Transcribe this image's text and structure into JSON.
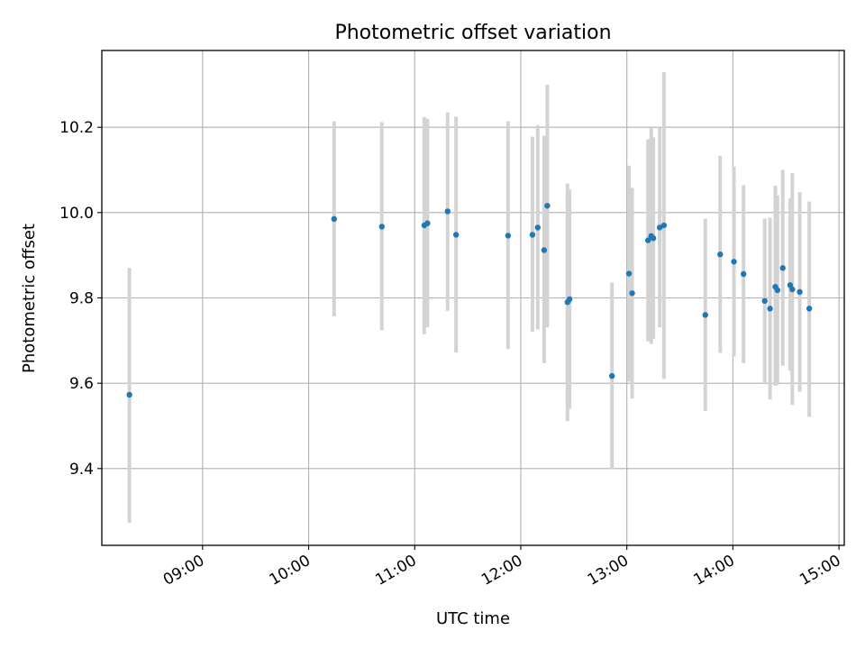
{
  "chart_data": {
    "type": "scatter",
    "title": "Photometric offset variation",
    "xlabel": "UTC time",
    "ylabel": "Photometric offset",
    "x_unit": "UTC hours",
    "xlim": [
      8.05,
      15.05
    ],
    "ylim": [
      9.22,
      10.38
    ],
    "xticks": [
      {
        "value": 9,
        "label": "09:00"
      },
      {
        "value": 10,
        "label": "10:00"
      },
      {
        "value": 11,
        "label": "11:00"
      },
      {
        "value": 12,
        "label": "12:00"
      },
      {
        "value": 13,
        "label": "13:00"
      },
      {
        "value": 14,
        "label": "14:00"
      },
      {
        "value": 15,
        "label": "15:00"
      }
    ],
    "yticks": [
      {
        "value": 9.4,
        "label": "9.4"
      },
      {
        "value": 9.6,
        "label": "9.6"
      },
      {
        "value": 9.8,
        "label": "9.8"
      },
      {
        "value": 10.0,
        "label": "10.0"
      },
      {
        "value": 10.2,
        "label": "10.2"
      }
    ],
    "grid": true,
    "point_color": "#1f77b4",
    "errorbar_color": "#d3d3d3",
    "points": [
      {
        "x": 8.31,
        "y": 9.573,
        "lo": 9.273,
        "hi": 9.87
      },
      {
        "x": 10.24,
        "y": 9.985,
        "lo": 9.757,
        "hi": 10.214
      },
      {
        "x": 10.69,
        "y": 9.967,
        "lo": 9.724,
        "hi": 10.212
      },
      {
        "x": 11.09,
        "y": 9.97,
        "lo": 9.715,
        "hi": 10.224
      },
      {
        "x": 11.12,
        "y": 9.975,
        "lo": 9.731,
        "hi": 10.22
      },
      {
        "x": 11.31,
        "y": 10.003,
        "lo": 9.77,
        "hi": 10.235
      },
      {
        "x": 11.39,
        "y": 9.948,
        "lo": 9.672,
        "hi": 10.225
      },
      {
        "x": 11.88,
        "y": 9.946,
        "lo": 9.68,
        "hi": 10.214
      },
      {
        "x": 12.11,
        "y": 9.948,
        "lo": 9.721,
        "hi": 10.178
      },
      {
        "x": 12.16,
        "y": 9.965,
        "lo": 9.726,
        "hi": 10.205
      },
      {
        "x": 12.22,
        "y": 9.912,
        "lo": 9.647,
        "hi": 10.18
      },
      {
        "x": 12.25,
        "y": 10.016,
        "lo": 9.731,
        "hi": 10.3
      },
      {
        "x": 12.44,
        "y": 9.79,
        "lo": 9.511,
        "hi": 10.068
      },
      {
        "x": 12.46,
        "y": 9.797,
        "lo": 9.54,
        "hi": 10.054
      },
      {
        "x": 12.86,
        "y": 9.617,
        "lo": 9.398,
        "hi": 9.836
      },
      {
        "x": 13.02,
        "y": 9.857,
        "lo": 9.604,
        "hi": 10.11
      },
      {
        "x": 13.05,
        "y": 9.811,
        "lo": 9.564,
        "hi": 10.058
      },
      {
        "x": 13.2,
        "y": 9.935,
        "lo": 9.698,
        "hi": 10.172
      },
      {
        "x": 13.23,
        "y": 9.945,
        "lo": 9.692,
        "hi": 10.198
      },
      {
        "x": 13.25,
        "y": 9.94,
        "lo": 9.704,
        "hi": 10.176
      },
      {
        "x": 13.31,
        "y": 9.965,
        "lo": 9.731,
        "hi": 10.199
      },
      {
        "x": 13.35,
        "y": 9.97,
        "lo": 9.61,
        "hi": 10.329
      },
      {
        "x": 13.74,
        "y": 9.76,
        "lo": 9.535,
        "hi": 9.986
      },
      {
        "x": 13.88,
        "y": 9.902,
        "lo": 9.671,
        "hi": 10.133
      },
      {
        "x": 14.01,
        "y": 9.885,
        "lo": 9.663,
        "hi": 10.108
      },
      {
        "x": 14.1,
        "y": 9.856,
        "lo": 9.647,
        "hi": 10.064
      },
      {
        "x": 14.3,
        "y": 9.793,
        "lo": 9.6,
        "hi": 9.986
      },
      {
        "x": 14.35,
        "y": 9.775,
        "lo": 9.562,
        "hi": 9.988
      },
      {
        "x": 14.4,
        "y": 9.826,
        "lo": 9.594,
        "hi": 10.063
      },
      {
        "x": 14.42,
        "y": 9.818,
        "lo": 9.596,
        "hi": 10.04
      },
      {
        "x": 14.47,
        "y": 9.87,
        "lo": 9.641,
        "hi": 10.1
      },
      {
        "x": 14.54,
        "y": 9.83,
        "lo": 9.63,
        "hi": 10.033
      },
      {
        "x": 14.56,
        "y": 9.82,
        "lo": 9.549,
        "hi": 10.093
      },
      {
        "x": 14.63,
        "y": 9.814,
        "lo": 9.58,
        "hi": 10.048
      },
      {
        "x": 14.72,
        "y": 9.775,
        "lo": 9.521,
        "hi": 10.026
      }
    ]
  }
}
